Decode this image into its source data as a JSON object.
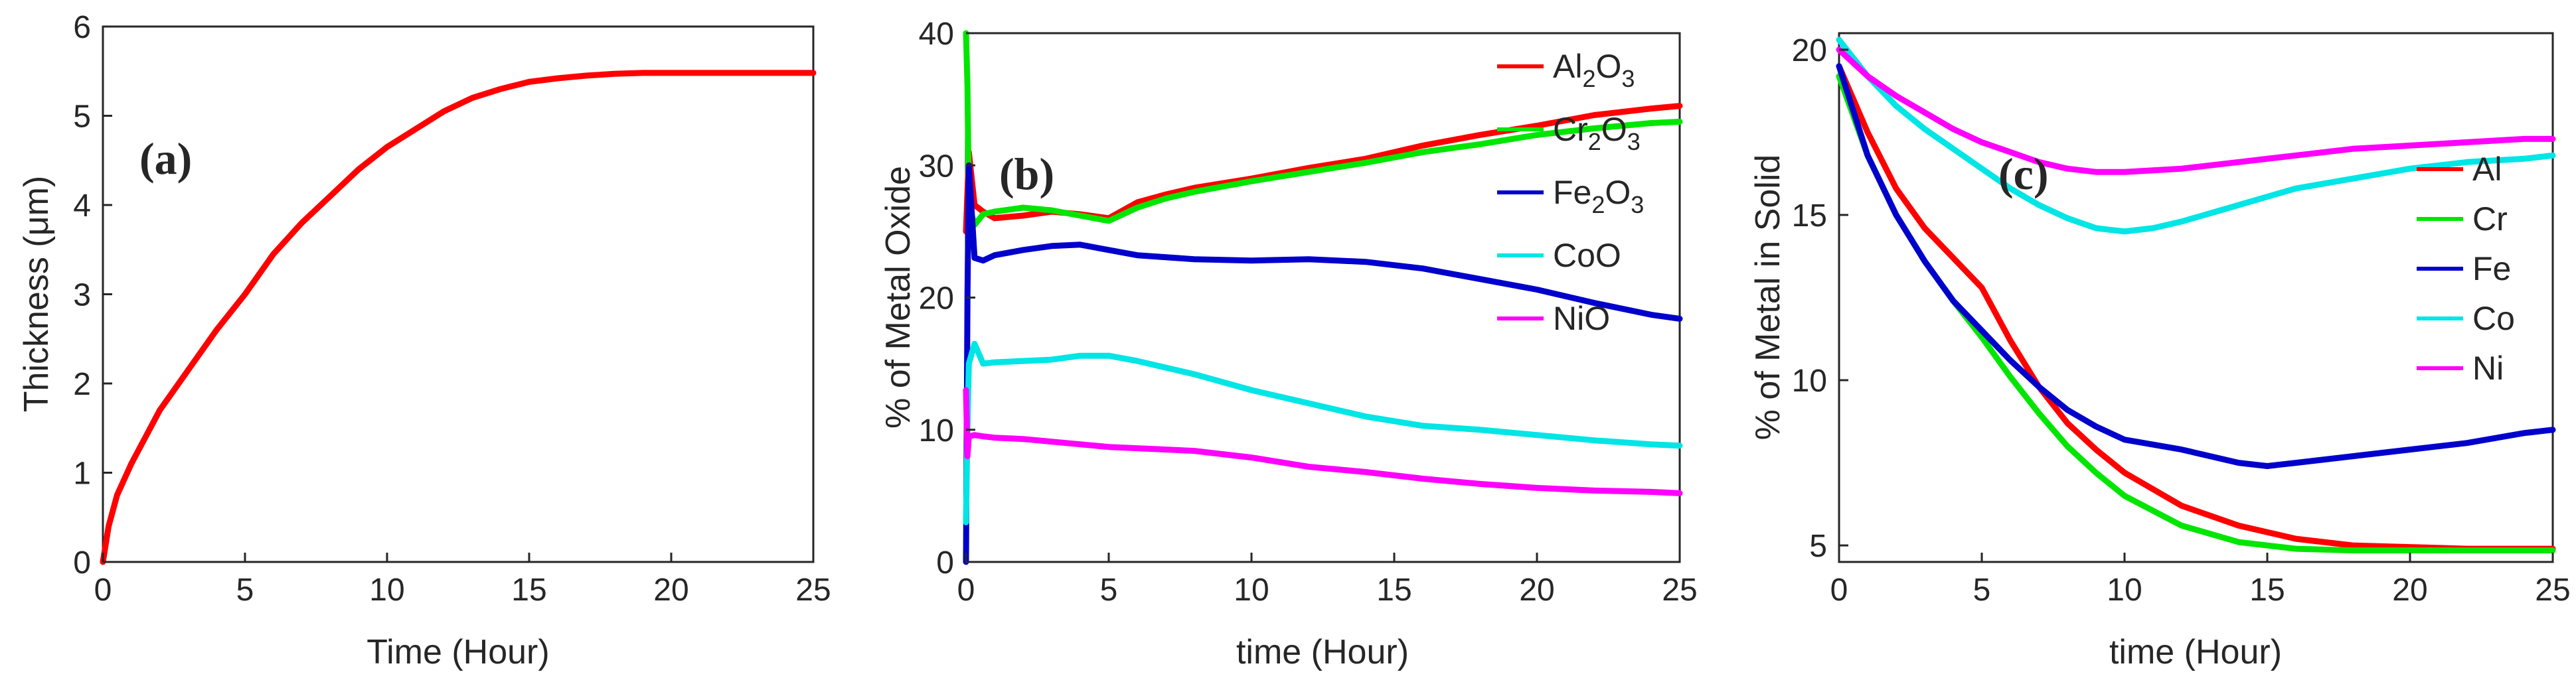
{
  "chart_data": [
    {
      "type": "line",
      "panel_label": "(a)",
      "title": "",
      "xlabel": "Time (Hour)",
      "ylabel": "Thickness (μm)",
      "xlim": [
        0,
        25
      ],
      "ylim": [
        0,
        6
      ],
      "xticks": [
        0,
        5,
        10,
        15,
        20,
        25
      ],
      "yticks": [
        0,
        1,
        2,
        3,
        4,
        5,
        6
      ],
      "grid": false,
      "legend": [],
      "series": [
        {
          "name": "Thickness",
          "color": "#ff0000",
          "x": [
            0,
            0.2,
            0.5,
            1,
            1.5,
            2,
            3,
            4,
            5,
            6,
            7,
            8,
            9,
            10,
            11,
            12,
            13,
            14,
            15,
            16,
            17,
            18,
            19,
            20,
            21,
            22,
            23,
            24,
            25
          ],
          "y": [
            0,
            0.4,
            0.75,
            1.1,
            1.4,
            1.7,
            2.15,
            2.6,
            3.0,
            3.45,
            3.8,
            4.1,
            4.4,
            4.65,
            4.85,
            5.05,
            5.2,
            5.3,
            5.38,
            5.42,
            5.45,
            5.47,
            5.48,
            5.48,
            5.48,
            5.48,
            5.48,
            5.48,
            5.48
          ]
        }
      ]
    },
    {
      "type": "line",
      "panel_label": "(b)",
      "title": "",
      "xlabel": "time (Hour)",
      "ylabel": "% of Metal Oxide",
      "xlim": [
        0,
        25
      ],
      "ylim": [
        0,
        40
      ],
      "xticks": [
        0,
        5,
        10,
        15,
        20,
        25
      ],
      "yticks": [
        0,
        10,
        20,
        30,
        40
      ],
      "grid": false,
      "legend_location": "top-right",
      "series": [
        {
          "name": "Al2O3",
          "label_main": "Al",
          "label_sub": "2",
          "label_main2": "O",
          "label_sub2": "3",
          "color": "#ff0000",
          "x": [
            0,
            0.1,
            0.3,
            0.6,
            1,
            2,
            3,
            4,
            5,
            6,
            7,
            8,
            10,
            12,
            14,
            16,
            18,
            20,
            22,
            24,
            25
          ],
          "y": [
            25,
            31,
            27,
            26.5,
            26,
            26.2,
            26.5,
            26.3,
            26,
            27.2,
            27.8,
            28.3,
            29,
            29.8,
            30.5,
            31.5,
            32.3,
            33,
            33.8,
            34.3,
            34.5
          ]
        },
        {
          "name": "Cr2O3",
          "label_main": "Cr",
          "label_sub": "2",
          "label_main2": "O",
          "label_sub2": "3",
          "color": "#00e600",
          "x": [
            0,
            0.05,
            0.1,
            0.3,
            0.6,
            1,
            2,
            3,
            4,
            5,
            6,
            7,
            8,
            10,
            12,
            14,
            16,
            18,
            20,
            22,
            24,
            25
          ],
          "y": [
            40,
            36,
            27,
            25.5,
            26.3,
            26.5,
            26.8,
            26.6,
            26.2,
            25.8,
            26.8,
            27.5,
            28,
            28.8,
            29.5,
            30.2,
            31,
            31.6,
            32.3,
            32.8,
            33.2,
            33.3
          ]
        },
        {
          "name": "Fe2O3",
          "label_main": "Fe",
          "label_sub": "2",
          "label_main2": "O",
          "label_sub2": "3",
          "color": "#0000cc",
          "x": [
            0,
            0.05,
            0.1,
            0.3,
            0.6,
            1,
            2,
            3,
            4,
            5,
            6,
            8,
            10,
            12,
            14,
            16,
            18,
            20,
            22,
            24,
            25
          ],
          "y": [
            0,
            20,
            30,
            23,
            22.8,
            23.2,
            23.6,
            23.9,
            24,
            23.6,
            23.2,
            22.9,
            22.8,
            22.9,
            22.7,
            22.2,
            21.4,
            20.6,
            19.6,
            18.7,
            18.4
          ]
        },
        {
          "name": "CoO",
          "label_main": "CoO",
          "label_sub": "",
          "label_main2": "",
          "label_sub2": "",
          "color": "#00e5e5",
          "x": [
            0,
            0.05,
            0.1,
            0.3,
            0.6,
            1,
            2,
            3,
            4,
            5,
            6,
            8,
            10,
            12,
            14,
            16,
            18,
            20,
            22,
            24,
            25
          ],
          "y": [
            3,
            10,
            15,
            16.5,
            15,
            15.1,
            15.2,
            15.3,
            15.6,
            15.6,
            15.2,
            14.2,
            13,
            12,
            11,
            10.3,
            10,
            9.6,
            9.2,
            8.9,
            8.8
          ]
        },
        {
          "name": "NiO",
          "label_main": "NiO",
          "label_sub": "",
          "label_main2": "",
          "label_sub2": "",
          "color": "#ff00ff",
          "x": [
            0,
            0.05,
            0.1,
            0.3,
            0.6,
            1,
            2,
            3,
            4,
            5,
            6,
            8,
            10,
            12,
            14,
            16,
            18,
            20,
            22,
            24,
            25
          ],
          "y": [
            13,
            8,
            9.5,
            9.6,
            9.5,
            9.4,
            9.3,
            9.1,
            8.9,
            8.7,
            8.6,
            8.4,
            7.9,
            7.2,
            6.8,
            6.3,
            5.9,
            5.6,
            5.4,
            5.3,
            5.2
          ]
        }
      ]
    },
    {
      "type": "line",
      "panel_label": "(c)",
      "title": "",
      "xlabel": "time (Hour)",
      "ylabel": "% of Metal in Solid",
      "xlim": [
        0,
        25
      ],
      "ylim": [
        4.5,
        20.5
      ],
      "xticks": [
        0,
        5,
        10,
        15,
        20,
        25
      ],
      "yticks": [
        5,
        10,
        15,
        20
      ],
      "grid": false,
      "legend_location": "right",
      "series": [
        {
          "name": "Al",
          "color": "#ff0000",
          "x": [
            0,
            1,
            2,
            3,
            4,
            5,
            6,
            7,
            8,
            9,
            10,
            12,
            14,
            16,
            18,
            20,
            22,
            25
          ],
          "y": [
            19.5,
            17.5,
            15.8,
            14.6,
            13.7,
            12.8,
            11.2,
            9.8,
            8.7,
            7.9,
            7.2,
            6.2,
            5.6,
            5.2,
            5.0,
            4.95,
            4.9,
            4.9
          ]
        },
        {
          "name": "Cr",
          "color": "#00e600",
          "x": [
            0,
            1,
            2,
            3,
            4,
            5,
            6,
            7,
            8,
            9,
            10,
            12,
            14,
            16,
            18,
            20,
            22,
            25
          ],
          "y": [
            19.2,
            16.8,
            15,
            13.6,
            12.4,
            11.3,
            10.1,
            9.0,
            8.0,
            7.2,
            6.5,
            5.6,
            5.1,
            4.9,
            4.85,
            4.85,
            4.85,
            4.85
          ]
        },
        {
          "name": "Fe",
          "color": "#0000cc",
          "x": [
            0,
            1,
            2,
            3,
            4,
            5,
            6,
            7,
            8,
            9,
            10,
            12,
            14,
            15,
            16,
            18,
            20,
            22,
            24,
            25
          ],
          "y": [
            19.5,
            16.8,
            15,
            13.6,
            12.4,
            11.5,
            10.6,
            9.8,
            9.1,
            8.6,
            8.2,
            7.9,
            7.5,
            7.4,
            7.5,
            7.7,
            7.9,
            8.1,
            8.4,
            8.5
          ]
        },
        {
          "name": "Co",
          "color": "#00e5e5",
          "x": [
            0,
            1,
            2,
            3,
            4,
            5,
            6,
            7,
            8,
            9,
            10,
            11,
            12,
            14,
            16,
            18,
            20,
            22,
            24,
            25
          ],
          "y": [
            20.3,
            19.2,
            18.3,
            17.6,
            17.0,
            16.4,
            15.8,
            15.3,
            14.9,
            14.6,
            14.5,
            14.6,
            14.8,
            15.3,
            15.8,
            16.1,
            16.4,
            16.6,
            16.7,
            16.8
          ]
        },
        {
          "name": "Ni",
          "color": "#ff00ff",
          "x": [
            0,
            1,
            2,
            3,
            4,
            5,
            6,
            7,
            8,
            9,
            10,
            12,
            14,
            16,
            18,
            20,
            22,
            24,
            25
          ],
          "y": [
            20.0,
            19.2,
            18.6,
            18.1,
            17.6,
            17.2,
            16.9,
            16.6,
            16.4,
            16.3,
            16.3,
            16.4,
            16.6,
            16.8,
            17.0,
            17.1,
            17.2,
            17.3,
            17.3
          ]
        }
      ]
    }
  ]
}
